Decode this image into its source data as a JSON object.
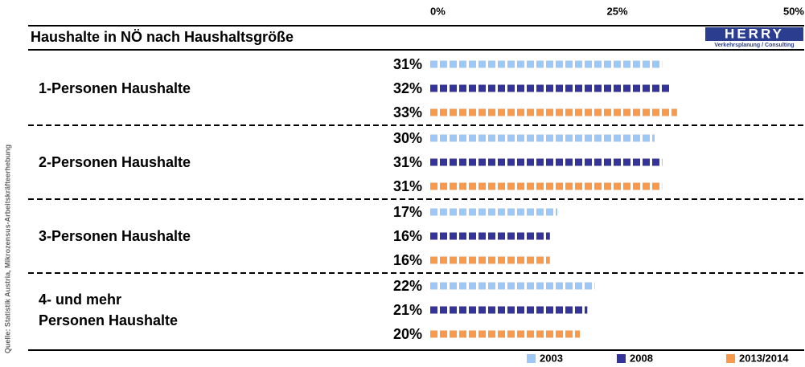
{
  "chart_data": {
    "type": "bar",
    "orientation": "horizontal",
    "title": "Haushalte in NÖ nach Haushaltsgröße",
    "categories": [
      "1-Personen Haushalte",
      "2-Personen Haushalte",
      "3-Personen Haushalte",
      "4- und mehr\nPersonen Haushalte"
    ],
    "series": [
      {
        "name": "2003",
        "color": "#9dc8f5",
        "values": [
          31,
          30,
          17,
          22
        ],
        "value_labels": [
          "31%",
          "30%",
          "17%",
          "22%"
        ]
      },
      {
        "name": "2008",
        "color": "#333399",
        "values": [
          32,
          31,
          16,
          21
        ],
        "value_labels": [
          "32%",
          "31%",
          "16%",
          "21%"
        ]
      },
      {
        "name": "2013/2014",
        "color": "#f79a4c",
        "values": [
          33,
          31,
          16,
          20
        ],
        "value_labels": [
          "33%",
          "31%",
          "16%",
          "20%"
        ]
      }
    ],
    "xlim": [
      0,
      50
    ],
    "xticks": [
      {
        "value": 0,
        "label": "0%"
      },
      {
        "value": 25,
        "label": "25%"
      },
      {
        "value": 50,
        "label": "50%"
      }
    ],
    "grid": false,
    "legend": "bottom-right"
  },
  "logo": {
    "text": "HERRY",
    "tagline": "Verkehrsplanung / Consulting"
  },
  "source": "Quelle: Statistik Austria, Mikrozensus-Arbeitskräfteerhebung"
}
